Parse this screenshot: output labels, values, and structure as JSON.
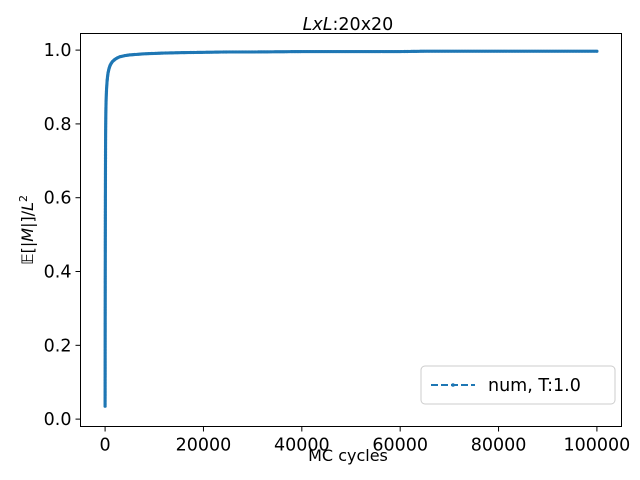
{
  "chart_data": {
    "type": "line",
    "title_italic": "LxL",
    "title_rest": ":20x20",
    "xlabel": "MC cycles",
    "ylabel_prefix": "𝔼[",
    "ylabel_M": "|M|",
    "ylabel_mid": "]/",
    "ylabel_L": "L",
    "ylabel_exp": "2",
    "xlim": [
      -5000,
      105000
    ],
    "ylim": [
      -0.02,
      1.045
    ],
    "x_ticks": [
      0,
      20000,
      40000,
      60000,
      80000,
      100000
    ],
    "x_tick_labels": [
      "0",
      "20000",
      "40000",
      "60000",
      "80000",
      "100000"
    ],
    "y_ticks": [
      0.0,
      0.2,
      0.4,
      0.6,
      0.8,
      1.0
    ],
    "y_tick_labels": [
      "0.0",
      "0.2",
      "0.4",
      "0.6",
      "0.8",
      "1.0"
    ],
    "grid": false,
    "legend_position": "lower-right",
    "series": [
      {
        "name": "num, T:1.0",
        "color": "#1f77b4",
        "linestyle": "dashed",
        "marker": "point",
        "x": [
          1,
          10,
          20,
          40,
          60,
          80,
          100,
          120,
          150,
          200,
          250,
          300,
          400,
          500,
          600,
          800,
          1000,
          1200,
          1500,
          2000,
          2500,
          3000,
          4000,
          5000,
          6000,
          8000,
          10000,
          12000,
          15000,
          20000,
          25000,
          30000,
          40000,
          50000,
          60000,
          65000,
          70000,
          80000,
          90000,
          100000
        ],
        "y": [
          0.035,
          0.1,
          0.25,
          0.45,
          0.6,
          0.69,
          0.75,
          0.79,
          0.83,
          0.86,
          0.88,
          0.895,
          0.915,
          0.928,
          0.938,
          0.95,
          0.958,
          0.963,
          0.969,
          0.975,
          0.979,
          0.982,
          0.985,
          0.987,
          0.988,
          0.99,
          0.991,
          0.992,
          0.993,
          0.994,
          0.995,
          0.995,
          0.996,
          0.996,
          0.996,
          0.997,
          0.997,
          0.997,
          0.997,
          0.997
        ]
      }
    ]
  }
}
